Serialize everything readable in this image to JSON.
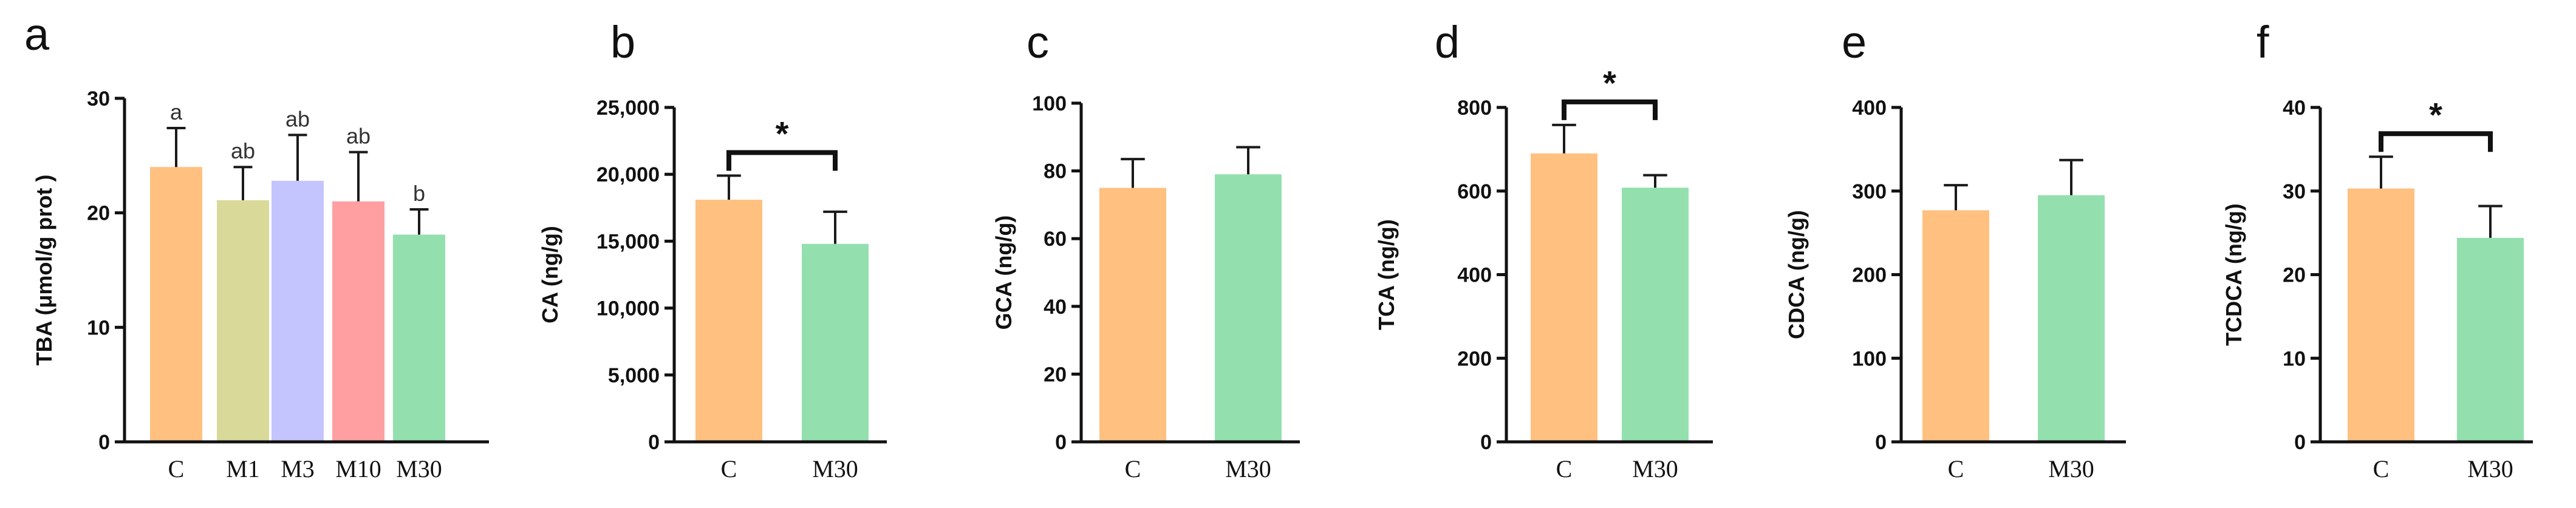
{
  "chart_data": [
    {
      "panel": "a",
      "type": "bar",
      "title": "",
      "xlabel": "",
      "ylabel": "TBA (μmol/g prot )",
      "ylim": [
        0,
        30
      ],
      "yticks": [
        0,
        10,
        20,
        30
      ],
      "ytick_labels": [
        "0",
        "10",
        "20",
        "30"
      ],
      "categories": [
        "C",
        "M1",
        "M3",
        "M10",
        "M30"
      ],
      "values": [
        24.0,
        21.1,
        22.8,
        21.0,
        18.1
      ],
      "errors": [
        3.4,
        2.9,
        4.0,
        4.3,
        2.2
      ],
      "colors": [
        "#FFC080",
        "#D9D99A",
        "#C4C4FF",
        "#FF9FA2",
        "#93E0AE"
      ],
      "letters": [
        "a",
        "ab",
        "ab",
        "ab",
        "b"
      ],
      "significance": null
    },
    {
      "panel": "b",
      "type": "bar",
      "title": "",
      "xlabel": "",
      "ylabel": "CA (ng/g)",
      "ylim": [
        0,
        25000
      ],
      "yticks": [
        0,
        5000,
        10000,
        15000,
        20000,
        25000
      ],
      "ytick_labels": [
        "0",
        "5,000",
        "10,000",
        "15,000",
        "20,000",
        "25,000"
      ],
      "categories": [
        "C",
        "M30"
      ],
      "values": [
        18100,
        14800
      ],
      "errors": [
        1800,
        2400
      ],
      "colors": [
        "#FFC080",
        "#93E0AE"
      ],
      "letters": null,
      "significance": "*"
    },
    {
      "panel": "c",
      "type": "bar",
      "title": "",
      "xlabel": "",
      "ylabel": "GCA (ng/g)",
      "ylim": [
        0,
        100
      ],
      "yticks": [
        0,
        20,
        40,
        60,
        80,
        100
      ],
      "ytick_labels": [
        "0",
        "20",
        "40",
        "60",
        "80",
        "100"
      ],
      "categories": [
        "C",
        "M30"
      ],
      "values": [
        75,
        79
      ],
      "errors": [
        8.5,
        8.0
      ],
      "colors": [
        "#FFC080",
        "#93E0AE"
      ],
      "letters": null,
      "significance": null
    },
    {
      "panel": "d",
      "type": "bar",
      "title": "",
      "xlabel": "",
      "ylabel": "TCA (ng/g)",
      "ylim": [
        0,
        800
      ],
      "yticks": [
        0,
        200,
        400,
        600,
        800
      ],
      "ytick_labels": [
        "0",
        "200",
        "400",
        "600",
        "800"
      ],
      "categories": [
        "C",
        "M30"
      ],
      "values": [
        690,
        608
      ],
      "errors": [
        68,
        30
      ],
      "colors": [
        "#FFC080",
        "#93E0AE"
      ],
      "letters": null,
      "significance": "*"
    },
    {
      "panel": "e",
      "type": "bar",
      "title": "",
      "xlabel": "",
      "ylabel": "CDCA (ng/g)",
      "ylim": [
        0,
        400
      ],
      "yticks": [
        0,
        100,
        200,
        300,
        400
      ],
      "ytick_labels": [
        "0",
        "100",
        "200",
        "300",
        "400"
      ],
      "categories": [
        "C",
        "M30"
      ],
      "values": [
        277,
        295
      ],
      "errors": [
        30,
        42
      ],
      "colors": [
        "#FFC080",
        "#93E0AE"
      ],
      "letters": null,
      "significance": null
    },
    {
      "panel": "f",
      "type": "bar",
      "title": "",
      "xlabel": "",
      "ylabel": "TCDCA (ng/g)",
      "ylim": [
        0,
        40
      ],
      "yticks": [
        0,
        10,
        20,
        30,
        40
      ],
      "ytick_labels": [
        "0",
        "10",
        "20",
        "30",
        "40"
      ],
      "categories": [
        "C",
        "M30"
      ],
      "values": [
        30.3,
        24.4
      ],
      "errors": [
        3.8,
        3.8
      ],
      "colors": [
        "#FFC080",
        "#93E0AE"
      ],
      "letters": null,
      "significance": "*"
    }
  ]
}
